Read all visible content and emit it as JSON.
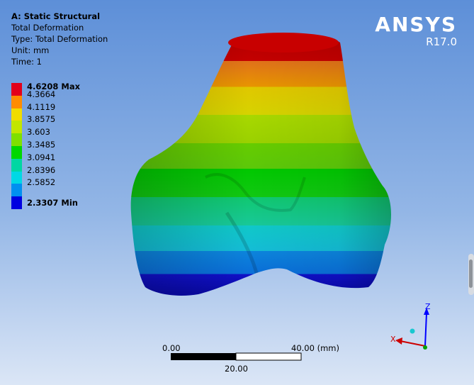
{
  "info": {
    "title": "A: Static Structural",
    "result": "Total Deformation",
    "type": "Type: Total Deformation",
    "unit": "Unit: mm",
    "time": "Time: 1"
  },
  "legend": [
    {
      "label": "4.6208 Max",
      "color": "#e3001a",
      "bold": true
    },
    {
      "label": "4.3664",
      "color": "#ff8c00",
      "bold": false
    },
    {
      "label": "4.1119",
      "color": "#f0dc00",
      "bold": false
    },
    {
      "label": "3.8575",
      "color": "#c2e600",
      "bold": false
    },
    {
      "label": "3.603",
      "color": "#7fe000",
      "bold": false
    },
    {
      "label": "3.3485",
      "color": "#00d700",
      "bold": false
    },
    {
      "label": "3.0941",
      "color": "#00d7a3",
      "bold": false
    },
    {
      "label": "2.8396",
      "color": "#00d8e5",
      "bold": false
    },
    {
      "label": "2.5852",
      "color": "#0090f0",
      "bold": false
    },
    {
      "label": "2.3307 Min",
      "color": "#0000e0",
      "bold": true
    }
  ],
  "brand": {
    "logo": "ANSYS",
    "version": "R17.0"
  },
  "scale": {
    "left": "0.00",
    "right": "40.00 (mm)",
    "middle": "20.00"
  },
  "triad": {
    "z": "Z",
    "x": "X"
  }
}
